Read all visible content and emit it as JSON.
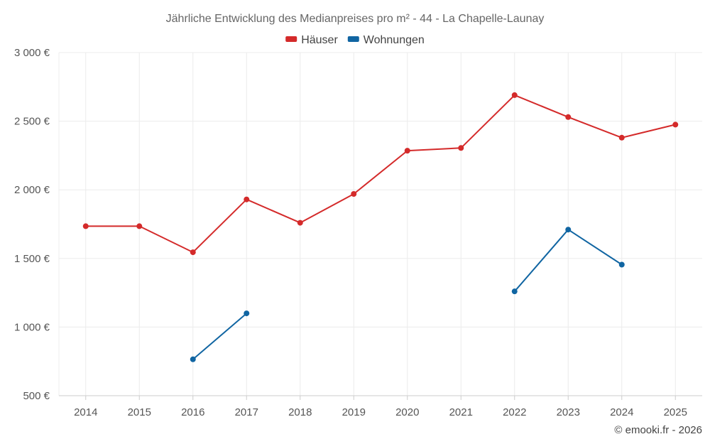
{
  "chart_data": {
    "type": "line",
    "title": "Jährliche Entwicklung des Medianpreises pro m² - 44 - La Chapelle-Launay",
    "categories": [
      "2014",
      "2015",
      "2016",
      "2017",
      "2018",
      "2019",
      "2020",
      "2021",
      "2022",
      "2023",
      "2024",
      "2025"
    ],
    "series": [
      {
        "name": "Häuser",
        "color": "#d42a2a",
        "values": [
          1735,
          1735,
          1545,
          1930,
          1760,
          1970,
          2285,
          2305,
          2690,
          2530,
          2380,
          2475
        ]
      },
      {
        "name": "Wohnungen",
        "color": "#1065a2",
        "values": [
          null,
          null,
          765,
          1100,
          null,
          null,
          null,
          null,
          1260,
          1710,
          1455,
          null
        ]
      }
    ],
    "ylim": [
      500,
      3000
    ],
    "yticks": [
      500,
      1000,
      1500,
      2000,
      2500,
      3000
    ],
    "ytick_labels": [
      "500 €",
      "1 000 €",
      "1 500 €",
      "2 000 €",
      "2 500 €",
      "3 000 €"
    ],
    "xlabel": "",
    "ylabel": "",
    "grid": true,
    "legend_position": "top-center"
  },
  "credit": "© emooki.fr - 2026"
}
